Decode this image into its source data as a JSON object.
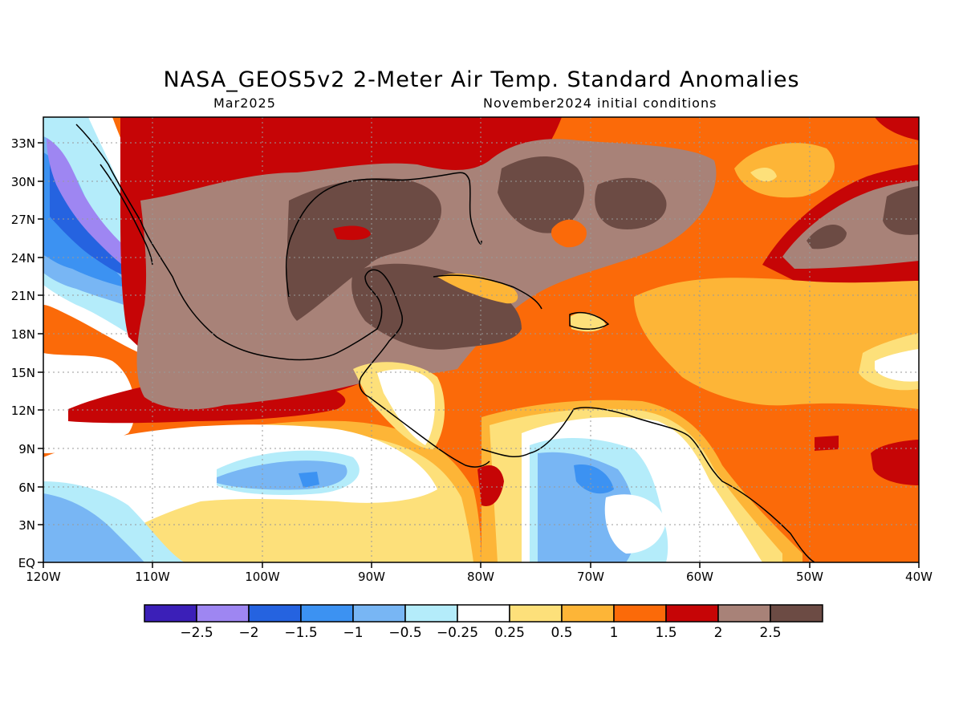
{
  "title": "NASA_GEOS5v2 2-Meter Air Temp. Standard Anomalies",
  "subtitle_left": "Mar2025",
  "subtitle_right": "November2024 initial conditions",
  "map": {
    "lon_range": [
      -120,
      -40
    ],
    "lat_range": [
      0,
      35
    ],
    "grid": true,
    "x_ticks": [
      "120W",
      "110W",
      "100W",
      "90W",
      "80W",
      "70W",
      "60W",
      "50W",
      "40W"
    ],
    "y_ticks": [
      "EQ",
      "3N",
      "6N",
      "9N",
      "12N",
      "15N",
      "18N",
      "21N",
      "24N",
      "27N",
      "30N",
      "33N"
    ]
  },
  "colorbar": {
    "labels": [
      "-2.5",
      "-2",
      "-1.5",
      "-1",
      "-0.5",
      "-0.25",
      "0.25",
      "0.5",
      "1",
      "1.5",
      "2",
      "2.5"
    ],
    "colors": [
      "#3b1fb8",
      "#9e86f2",
      "#2563e0",
      "#3c92f2",
      "#78b6f4",
      "#b4ecfa",
      "#ffffff",
      "#fde07a",
      "#fdb537",
      "#fb6a09",
      "#c60506",
      "#a88278",
      "#6c4b44"
    ]
  }
}
